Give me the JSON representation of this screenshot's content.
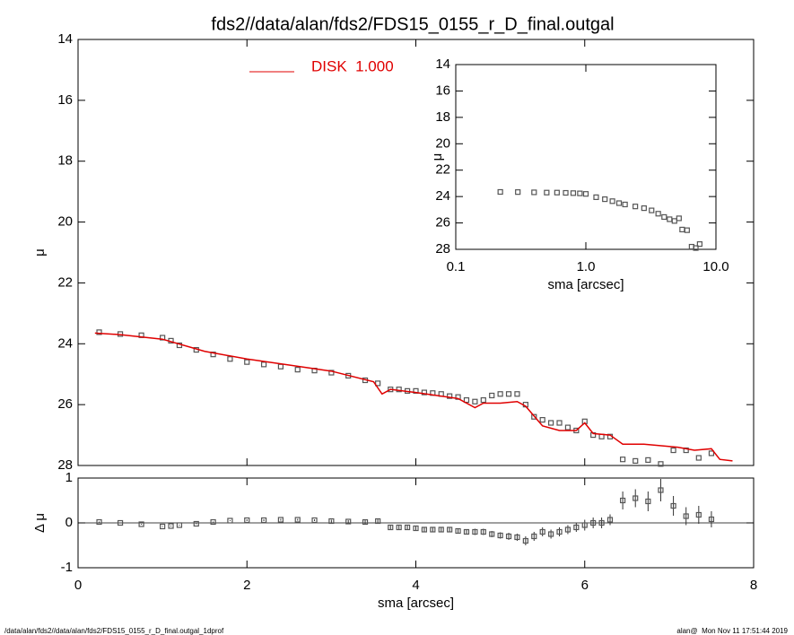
{
  "chart_data": [
    {
      "type": "scatter",
      "title": "fds2//data/alan/fds2/FDS15_0155_r_D_final.outgal",
      "ylabel": "μ",
      "xlim": [
        0,
        8
      ],
      "ylim": [
        28,
        14
      ],
      "yticks": [
        14,
        16,
        18,
        20,
        22,
        24,
        26,
        28
      ],
      "series": [
        {
          "marker": "square",
          "color": "#555555",
          "x": [
            0.25,
            0.5,
            0.75,
            1.0,
            1.1,
            1.2,
            1.4,
            1.6,
            1.8,
            2.0,
            2.2,
            2.4,
            2.6,
            2.8,
            3.0,
            3.2,
            3.4,
            3.55,
            3.7,
            3.8,
            3.9,
            4.0,
            4.1,
            4.2,
            4.3,
            4.4,
            4.5,
            4.6,
            4.7,
            4.8,
            4.9,
            5.0,
            5.1,
            5.2,
            5.3,
            5.4,
            5.5,
            5.6,
            5.7,
            5.8,
            5.9,
            6.0,
            6.1,
            6.2,
            6.3,
            6.45,
            6.6,
            6.75,
            6.9,
            7.05,
            7.2,
            7.35,
            7.5
          ],
          "values": [
            23.62,
            23.68,
            23.72,
            23.8,
            23.9,
            24.05,
            24.2,
            24.35,
            24.5,
            24.6,
            24.68,
            24.75,
            24.85,
            24.88,
            24.95,
            25.05,
            25.2,
            25.3,
            25.5,
            25.5,
            25.55,
            25.55,
            25.6,
            25.62,
            25.65,
            25.72,
            25.75,
            25.85,
            25.9,
            25.85,
            25.7,
            25.65,
            25.65,
            25.65,
            26.0,
            26.4,
            26.5,
            26.6,
            26.6,
            26.75,
            26.85,
            26.55,
            27.0,
            27.05,
            27.05,
            27.8,
            27.85,
            27.82,
            27.95,
            27.5,
            27.5,
            27.75,
            27.6
          ]
        },
        {
          "name": "DISK  1.000",
          "color": "#e00000",
          "marker": "line",
          "x": [
            0.2,
            0.5,
            1.0,
            1.5,
            2.0,
            2.5,
            3.0,
            3.5,
            3.6,
            3.7,
            4.0,
            4.5,
            4.7,
            4.8,
            5.0,
            5.2,
            5.3,
            5.5,
            5.7,
            5.9,
            6.0,
            6.1,
            6.3,
            6.45,
            6.7,
            7.1,
            7.3,
            7.5,
            7.6,
            7.75
          ],
          "values": [
            23.65,
            23.7,
            23.85,
            24.25,
            24.5,
            24.7,
            24.9,
            25.25,
            25.65,
            25.5,
            25.6,
            25.8,
            26.1,
            25.95,
            25.95,
            25.9,
            26.05,
            26.7,
            26.85,
            26.85,
            26.6,
            26.95,
            27.0,
            27.3,
            27.3,
            27.4,
            27.5,
            27.45,
            27.8,
            27.85
          ]
        }
      ]
    },
    {
      "type": "errorbar",
      "ylabel": "Δ μ",
      "xlabel": "sma [arcsec]",
      "xlim": [
        0,
        8
      ],
      "ylim": [
        -1,
        1
      ],
      "xticks": [
        0,
        2,
        4,
        6,
        8
      ],
      "yticks": [
        -1,
        0,
        1
      ],
      "x": [
        0.25,
        0.5,
        0.75,
        1.0,
        1.1,
        1.2,
        1.4,
        1.6,
        1.8,
        2.0,
        2.2,
        2.4,
        2.6,
        2.8,
        3.0,
        3.2,
        3.4,
        3.55,
        3.7,
        3.8,
        3.9,
        4.0,
        4.1,
        4.2,
        4.3,
        4.4,
        4.5,
        4.6,
        4.7,
        4.8,
        4.9,
        5.0,
        5.1,
        5.2,
        5.3,
        5.4,
        5.5,
        5.6,
        5.7,
        5.8,
        5.9,
        6.0,
        6.1,
        6.2,
        6.3,
        6.45,
        6.6,
        6.75,
        6.9,
        7.05,
        7.2,
        7.35,
        7.5
      ],
      "values": [
        0.02,
        0.0,
        -0.03,
        -0.08,
        -0.07,
        -0.05,
        -0.02,
        0.02,
        0.05,
        0.06,
        0.06,
        0.07,
        0.07,
        0.06,
        0.04,
        0.03,
        0.02,
        0.04,
        -0.1,
        -0.1,
        -0.1,
        -0.12,
        -0.15,
        -0.15,
        -0.15,
        -0.15,
        -0.18,
        -0.2,
        -0.2,
        -0.2,
        -0.25,
        -0.28,
        -0.3,
        -0.32,
        -0.4,
        -0.3,
        -0.2,
        -0.25,
        -0.2,
        -0.15,
        -0.1,
        -0.05,
        0.0,
        0.0,
        0.07,
        0.5,
        0.55,
        0.48,
        0.73,
        0.38,
        0.15,
        0.18,
        0.08
      ],
      "errors": [
        0.01,
        0.01,
        0.01,
        0.01,
        0.01,
        0.01,
        0.01,
        0.01,
        0.01,
        0.02,
        0.02,
        0.02,
        0.02,
        0.02,
        0.03,
        0.03,
        0.04,
        0.04,
        0.05,
        0.05,
        0.05,
        0.05,
        0.05,
        0.05,
        0.06,
        0.06,
        0.06,
        0.06,
        0.07,
        0.07,
        0.07,
        0.07,
        0.08,
        0.08,
        0.1,
        0.1,
        0.1,
        0.1,
        0.1,
        0.1,
        0.1,
        0.12,
        0.12,
        0.12,
        0.12,
        0.2,
        0.2,
        0.22,
        0.25,
        0.22,
        0.2,
        0.2,
        0.18
      ]
    },
    {
      "type": "scatter",
      "log_x": true,
      "xlabel": "sma [arcsec]",
      "ylabel": "μ",
      "xlim": [
        0.1,
        10
      ],
      "ylim": [
        28,
        14
      ],
      "xticks": [
        0.1,
        {
          "value": 1,
          "label": "1.0"
        },
        {
          "value": 10,
          "label": "10.0"
        }
      ],
      "yticks": [
        14,
        16,
        18,
        20,
        22,
        24,
        26,
        28
      ],
      "series": [
        {
          "marker": "square",
          "color": "#555555",
          "x": [
            0.22,
            0.3,
            0.4,
            0.5,
            0.6,
            0.7,
            0.8,
            0.9,
            1.0,
            1.2,
            1.4,
            1.6,
            1.8,
            2.0,
            2.4,
            2.8,
            3.2,
            3.6,
            4.0,
            4.4,
            4.8,
            5.2,
            5.5,
            6.0,
            6.5,
            7.0,
            7.5
          ],
          "values": [
            23.65,
            23.66,
            23.68,
            23.7,
            23.7,
            23.72,
            23.74,
            23.76,
            23.8,
            24.05,
            24.2,
            24.35,
            24.5,
            24.6,
            24.75,
            24.88,
            25.05,
            25.3,
            25.55,
            25.72,
            25.85,
            25.65,
            26.5,
            26.55,
            27.8,
            27.9,
            27.6
          ]
        }
      ]
    }
  ],
  "footer": {
    "left": "/data/alan/fds2//data/alan/fds2/FDS15_0155_r_D_final.outgal_1dprof",
    "right": "alan@  Mon Nov 11 17:51:44 2019"
  }
}
